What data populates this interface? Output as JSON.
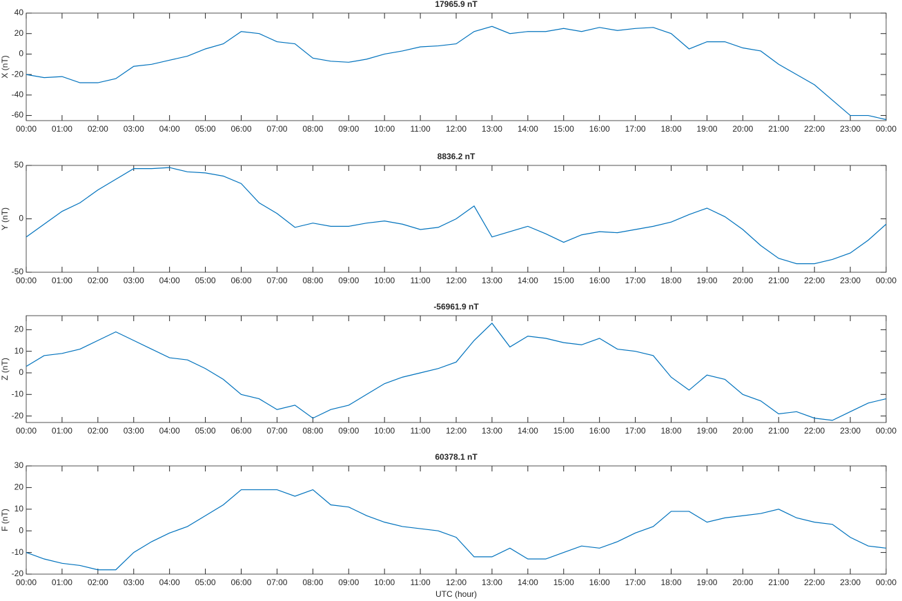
{
  "chart_data": [
    {
      "type": "line",
      "title": "17965.9 nT",
      "ylabel": "X (nT)",
      "color": "#0072bd",
      "x": [
        0,
        0.5,
        1,
        1.5,
        2,
        2.5,
        3,
        3.5,
        4,
        4.5,
        5,
        5.5,
        6,
        6.5,
        7,
        7.5,
        8,
        8.5,
        9,
        9.5,
        10,
        10.5,
        11,
        11.5,
        12,
        12.5,
        13,
        13.5,
        14,
        14.5,
        15,
        15.5,
        16,
        16.5,
        17,
        17.5,
        18,
        18.5,
        19,
        19.5,
        20,
        20.5,
        21,
        21.5,
        22,
        22.5,
        23,
        23.5,
        24
      ],
      "values": [
        -20,
        -23,
        -22,
        -28,
        -28,
        -24,
        -12,
        -10,
        -6,
        -2,
        5,
        10,
        22,
        20,
        12,
        10,
        -4,
        -7,
        -8,
        -5,
        0,
        3,
        7,
        8,
        10,
        22,
        27,
        20,
        22,
        22,
        25,
        22,
        26,
        23,
        25,
        26,
        20,
        5,
        12,
        12,
        6,
        3,
        -10,
        -20,
        -30,
        -45,
        -60,
        -60,
        -64
      ],
      "xlim": [
        0,
        24
      ],
      "ylim": [
        -65,
        40
      ],
      "yticks": [
        -60,
        -40,
        -20,
        0,
        20,
        40
      ],
      "xticks": [
        {
          "value": 0,
          "label": "00:00"
        },
        {
          "value": 1,
          "label": "01:00"
        },
        {
          "value": 2,
          "label": "02:00"
        },
        {
          "value": 3,
          "label": "03:00"
        },
        {
          "value": 4,
          "label": "04:00"
        },
        {
          "value": 5,
          "label": "05:00"
        },
        {
          "value": 6,
          "label": "06:00"
        },
        {
          "value": 7,
          "label": "07:00"
        },
        {
          "value": 8,
          "label": "08:00"
        },
        {
          "value": 9,
          "label": "09:00"
        },
        {
          "value": 10,
          "label": "10:00"
        },
        {
          "value": 11,
          "label": "11:00"
        },
        {
          "value": 12,
          "label": "12:00"
        },
        {
          "value": 13,
          "label": "13:00"
        },
        {
          "value": 14,
          "label": "14:00"
        },
        {
          "value": 15,
          "label": "15:00"
        },
        {
          "value": 16,
          "label": "16:00"
        },
        {
          "value": 17,
          "label": "17:00"
        },
        {
          "value": 18,
          "label": "18:00"
        },
        {
          "value": 19,
          "label": "19:00"
        },
        {
          "value": 20,
          "label": "20:00"
        },
        {
          "value": 21,
          "label": "21:00"
        },
        {
          "value": 22,
          "label": "22:00"
        },
        {
          "value": 23,
          "label": "23:00"
        },
        {
          "value": 24,
          "label": "00:00"
        }
      ]
    },
    {
      "type": "line",
      "title": "8836.2 nT",
      "ylabel": "Y (nT)",
      "color": "#0072bd",
      "x": [
        0,
        0.5,
        1,
        1.5,
        2,
        2.5,
        3,
        3.5,
        4,
        4.5,
        5,
        5.5,
        6,
        6.5,
        7,
        7.5,
        8,
        8.5,
        9,
        9.5,
        10,
        10.5,
        11,
        11.5,
        12,
        12.5,
        13,
        13.5,
        14,
        14.5,
        15,
        15.5,
        16,
        16.5,
        17,
        17.5,
        18,
        18.5,
        19,
        19.5,
        20,
        20.5,
        21,
        21.5,
        22,
        22.5,
        23,
        23.5,
        24
      ],
      "values": [
        -17,
        -5,
        7,
        15,
        27,
        37,
        47,
        47,
        48,
        44,
        43,
        40,
        33,
        15,
        5,
        -8,
        -4,
        -7,
        -7,
        -4,
        -2,
        -5,
        -10,
        -8,
        0,
        12,
        -17,
        -12,
        -7,
        -14,
        -22,
        -15,
        -12,
        -13,
        -10,
        -7,
        -3,
        4,
        10,
        2,
        -10,
        -25,
        -37,
        -42,
        -42,
        -38,
        -32,
        -20,
        -5
      ],
      "xlim": [
        0,
        24
      ],
      "ylim": [
        -50,
        50
      ],
      "yticks": [
        -50,
        0,
        50
      ],
      "xticks": [
        {
          "value": 0,
          "label": "00:00"
        },
        {
          "value": 1,
          "label": "01:00"
        },
        {
          "value": 2,
          "label": "02:00"
        },
        {
          "value": 3,
          "label": "03:00"
        },
        {
          "value": 4,
          "label": "04:00"
        },
        {
          "value": 5,
          "label": "05:00"
        },
        {
          "value": 6,
          "label": "06:00"
        },
        {
          "value": 7,
          "label": "07:00"
        },
        {
          "value": 8,
          "label": "08:00"
        },
        {
          "value": 9,
          "label": "09:00"
        },
        {
          "value": 10,
          "label": "10:00"
        },
        {
          "value": 11,
          "label": "11:00"
        },
        {
          "value": 12,
          "label": "12:00"
        },
        {
          "value": 13,
          "label": "13:00"
        },
        {
          "value": 14,
          "label": "14:00"
        },
        {
          "value": 15,
          "label": "15:00"
        },
        {
          "value": 16,
          "label": "16:00"
        },
        {
          "value": 17,
          "label": "17:00"
        },
        {
          "value": 18,
          "label": "18:00"
        },
        {
          "value": 19,
          "label": "19:00"
        },
        {
          "value": 20,
          "label": "20:00"
        },
        {
          "value": 21,
          "label": "21:00"
        },
        {
          "value": 22,
          "label": "22:00"
        },
        {
          "value": 23,
          "label": "23:00"
        },
        {
          "value": 24,
          "label": "00:00"
        }
      ]
    },
    {
      "type": "line",
      "title": "-56961.9 nT",
      "ylabel": "Z (nT)",
      "color": "#0072bd",
      "x": [
        0,
        0.5,
        1,
        1.5,
        2,
        2.5,
        3,
        3.5,
        4,
        4.5,
        5,
        5.5,
        6,
        6.5,
        7,
        7.5,
        8,
        8.5,
        9,
        9.5,
        10,
        10.5,
        11,
        11.5,
        12,
        12.5,
        13,
        13.5,
        14,
        14.5,
        15,
        15.5,
        16,
        16.5,
        17,
        17.5,
        18,
        18.5,
        19,
        19.5,
        20,
        20.5,
        21,
        21.5,
        22,
        22.5,
        23,
        23.5,
        24
      ],
      "values": [
        3,
        8,
        9,
        11,
        15,
        19,
        15,
        11,
        7,
        6,
        2,
        -3,
        -10,
        -12,
        -17,
        -15,
        -21,
        -17,
        -15,
        -10,
        -5,
        -2,
        0,
        2,
        5,
        15,
        23,
        12,
        17,
        16,
        14,
        13,
        16,
        11,
        10,
        8,
        -2,
        -8,
        -1,
        -3,
        -10,
        -13,
        -19,
        -18,
        -21,
        -22,
        -18,
        -14,
        -12
      ],
      "xlim": [
        0,
        24
      ],
      "ylim": [
        -23,
        26.5
      ],
      "yticks": [
        -20,
        -10,
        0,
        10,
        20
      ],
      "xticks": [
        {
          "value": 0,
          "label": "00:00"
        },
        {
          "value": 1,
          "label": "01:00"
        },
        {
          "value": 2,
          "label": "02:00"
        },
        {
          "value": 3,
          "label": "03:00"
        },
        {
          "value": 4,
          "label": "04:00"
        },
        {
          "value": 5,
          "label": "05:00"
        },
        {
          "value": 6,
          "label": "06:00"
        },
        {
          "value": 7,
          "label": "07:00"
        },
        {
          "value": 8,
          "label": "08:00"
        },
        {
          "value": 9,
          "label": "09:00"
        },
        {
          "value": 10,
          "label": "10:00"
        },
        {
          "value": 11,
          "label": "11:00"
        },
        {
          "value": 12,
          "label": "12:00"
        },
        {
          "value": 13,
          "label": "13:00"
        },
        {
          "value": 14,
          "label": "14:00"
        },
        {
          "value": 15,
          "label": "15:00"
        },
        {
          "value": 16,
          "label": "16:00"
        },
        {
          "value": 17,
          "label": "17:00"
        },
        {
          "value": 18,
          "label": "18:00"
        },
        {
          "value": 19,
          "label": "19:00"
        },
        {
          "value": 20,
          "label": "20:00"
        },
        {
          "value": 21,
          "label": "21:00"
        },
        {
          "value": 22,
          "label": "22:00"
        },
        {
          "value": 23,
          "label": "23:00"
        },
        {
          "value": 24,
          "label": "00:00"
        }
      ]
    },
    {
      "type": "line",
      "title": "60378.1 nT",
      "ylabel": "F (nT)",
      "xlabel": "UTC (hour)",
      "color": "#0072bd",
      "x": [
        0,
        0.5,
        1,
        1.5,
        2,
        2.5,
        3,
        3.5,
        4,
        4.5,
        5,
        5.5,
        6,
        6.5,
        7,
        7.5,
        8,
        8.5,
        9,
        9.5,
        10,
        10.5,
        11,
        11.5,
        12,
        12.5,
        13,
        13.5,
        14,
        14.5,
        15,
        15.5,
        16,
        16.5,
        17,
        17.5,
        18,
        18.5,
        19,
        19.5,
        20,
        20.5,
        21,
        21.5,
        22,
        22.5,
        23,
        23.5,
        24
      ],
      "values": [
        -10,
        -13,
        -15,
        -16,
        -18,
        -18,
        -10,
        -5,
        -1,
        2,
        7,
        12,
        19,
        19,
        19,
        16,
        19,
        12,
        11,
        7,
        4,
        2,
        1,
        0,
        -3,
        -12,
        -12,
        -8,
        -13,
        -13,
        -10,
        -7,
        -8,
        -5,
        -1,
        2,
        9,
        9,
        4,
        6,
        7,
        8,
        10,
        6,
        4,
        3,
        -3,
        -7,
        -8
      ],
      "xlim": [
        0,
        24
      ],
      "ylim": [
        -20,
        30
      ],
      "yticks": [
        -20,
        -10,
        0,
        10,
        20,
        30
      ],
      "xticks": [
        {
          "value": 0,
          "label": "00:00"
        },
        {
          "value": 1,
          "label": "01:00"
        },
        {
          "value": 2,
          "label": "02:00"
        },
        {
          "value": 3,
          "label": "03:00"
        },
        {
          "value": 4,
          "label": "04:00"
        },
        {
          "value": 5,
          "label": "05:00"
        },
        {
          "value": 6,
          "label": "06:00"
        },
        {
          "value": 7,
          "label": "07:00"
        },
        {
          "value": 8,
          "label": "08:00"
        },
        {
          "value": 9,
          "label": "09:00"
        },
        {
          "value": 10,
          "label": "10:00"
        },
        {
          "value": 11,
          "label": "11:00"
        },
        {
          "value": 12,
          "label": "12:00"
        },
        {
          "value": 13,
          "label": "13:00"
        },
        {
          "value": 14,
          "label": "14:00"
        },
        {
          "value": 15,
          "label": "15:00"
        },
        {
          "value": 16,
          "label": "16:00"
        },
        {
          "value": 17,
          "label": "17:00"
        },
        {
          "value": 18,
          "label": "18:00"
        },
        {
          "value": 19,
          "label": "19:00"
        },
        {
          "value": 20,
          "label": "20:00"
        },
        {
          "value": 21,
          "label": "21:00"
        },
        {
          "value": 22,
          "label": "22:00"
        },
        {
          "value": 23,
          "label": "23:00"
        },
        {
          "value": 24,
          "label": "00:00"
        }
      ]
    }
  ]
}
